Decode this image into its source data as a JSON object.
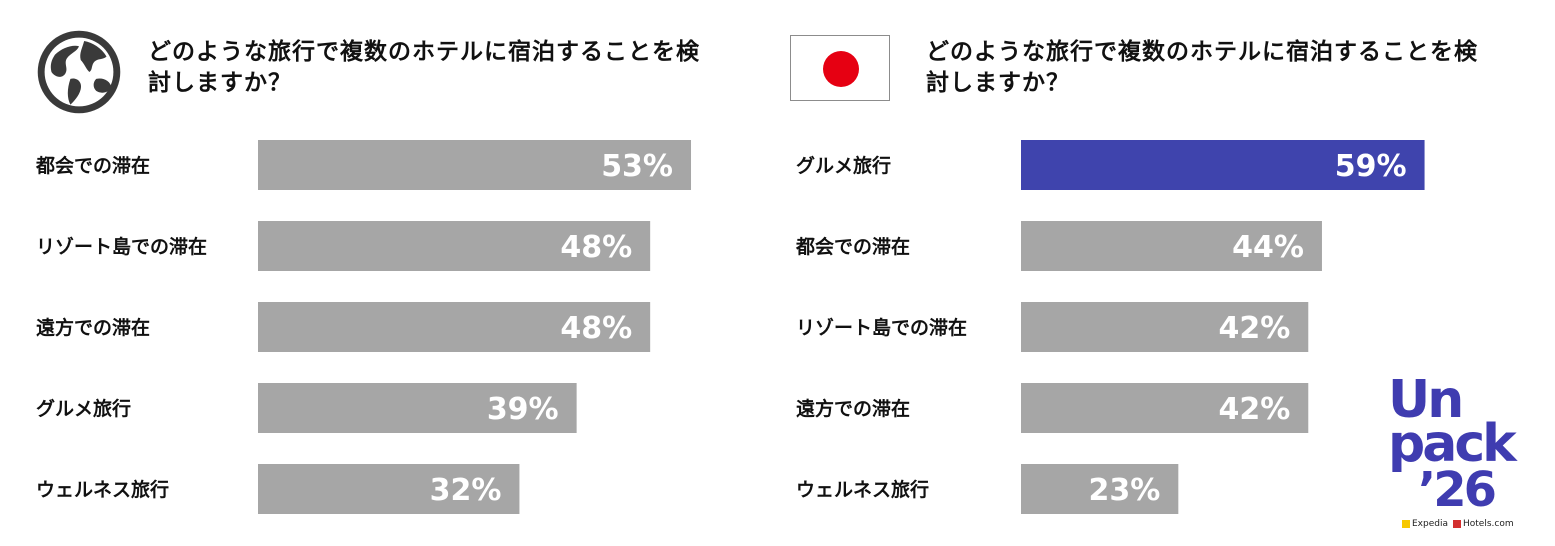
{
  "colors": {
    "bar_default": "#a6a6a6",
    "bar_highlight": "#3f44ad",
    "value_text": "#ffffff",
    "flag_sun": "#e60012",
    "logo": "#3f3cb0"
  },
  "panels": [
    {
      "icon": "globe-icon",
      "question": "どのような旅行で複数のホテルに宿泊することを検討しますか？"
    },
    {
      "icon": "japan-flag-icon",
      "question": "どのような旅行で複数のホテルに宿泊することを検討しますか？"
    }
  ],
  "chart_data": [
    {
      "type": "bar",
      "orientation": "horizontal",
      "categories": [
        "都会での滞在",
        "リゾート島での滞在",
        "遠方での滞在",
        "グルメ旅行",
        "ウェルネス旅行"
      ],
      "values": [
        53,
        48,
        48,
        39,
        32
      ],
      "value_labels": [
        "53%",
        "48%",
        "48%",
        "39%",
        "32%"
      ],
      "highlight_index": -1,
      "xlim": [
        0,
        100
      ],
      "title": "どのような旅行で複数のホテルに宿泊することを検討しますか？",
      "grid": false
    },
    {
      "type": "bar",
      "orientation": "horizontal",
      "categories": [
        "グルメ旅行",
        "都会での滞在",
        "リゾート島での滞在",
        "遠方での滞在",
        "ウェルネス旅行"
      ],
      "values": [
        59,
        44,
        42,
        42,
        23
      ],
      "value_labels": [
        "59%",
        "44%",
        "42%",
        "42%",
        "23%"
      ],
      "highlight_index": 0,
      "xlim": [
        0,
        100
      ],
      "title": "どのような旅行で複数のホテルに宿泊することを検討しますか？",
      "grid": false
    }
  ],
  "logo": {
    "line1": "Un",
    "line2": "pack",
    "line3": "’26",
    "brand_expedia": "Expedia",
    "brand_hotels": "Hotels.com"
  }
}
